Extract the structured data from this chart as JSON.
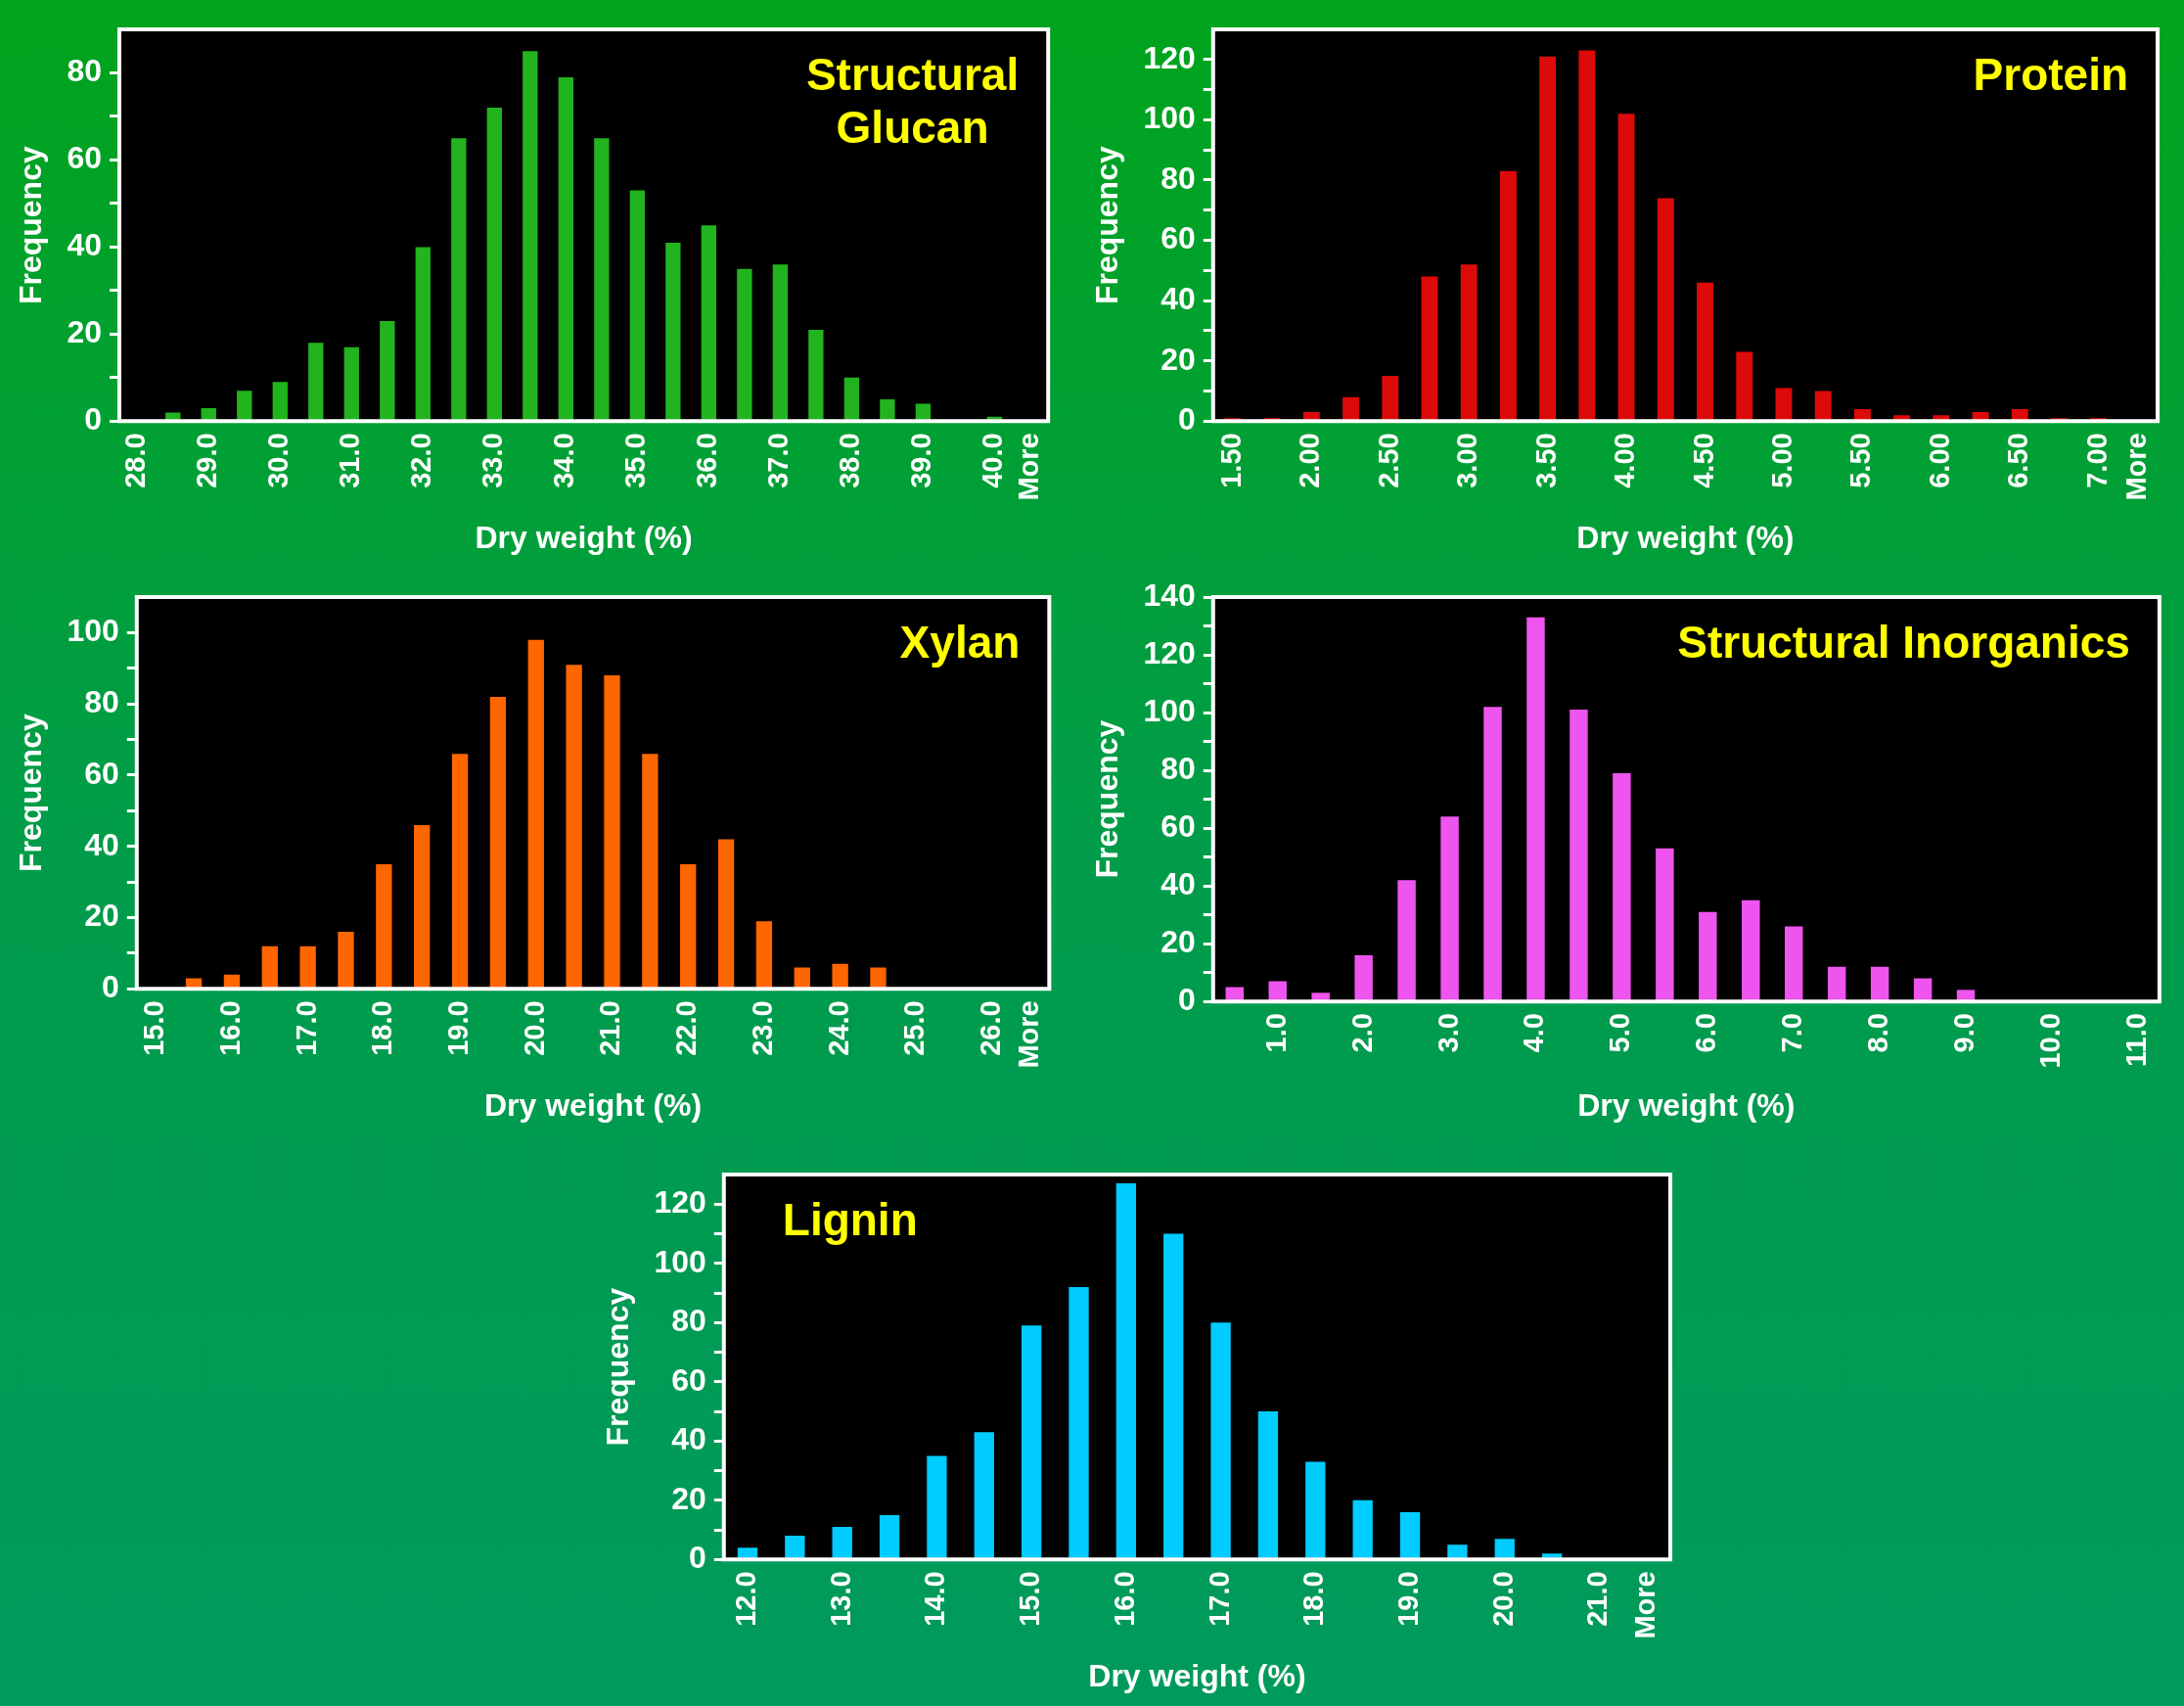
{
  "chart_data": [
    {
      "type": "bar",
      "title": "Structural Glucan",
      "xlabel": "Dry weight (%)",
      "ylabel": "Frequency",
      "color": "#22b41e",
      "categories": [
        "28.0",
        null,
        "29.0",
        null,
        "30.0",
        null,
        "31.0",
        null,
        "32.0",
        null,
        "33.0",
        null,
        "34.0",
        null,
        "35.0",
        null,
        "36.0",
        null,
        "37.0",
        null,
        "38.0",
        null,
        "39.0",
        null,
        "40.0",
        "More"
      ],
      "values": [
        0,
        2,
        3,
        7,
        9,
        18,
        17,
        23,
        40,
        65,
        72,
        85,
        79,
        65,
        53,
        41,
        45,
        35,
        36,
        21,
        10,
        5,
        4,
        0,
        1,
        0
      ],
      "ylim": [
        0,
        90
      ],
      "yticks": [
        0,
        {
          "value": 10,
          "label": null
        },
        20,
        {
          "value": 30,
          "label": null
        },
        40,
        {
          "value": 50,
          "label": null
        },
        60,
        {
          "value": 70,
          "label": null
        },
        80
      ]
    },
    {
      "type": "bar",
      "title": "Protein",
      "xlabel": "Dry weight (%)",
      "ylabel": "Frequency",
      "color": "#dd0a0a",
      "categories": [
        "1.50",
        null,
        "2.00",
        null,
        "2.50",
        null,
        "3.00",
        null,
        "3.50",
        null,
        "4.00",
        null,
        "4.50",
        null,
        "5.00",
        null,
        "5.50",
        null,
        "6.00",
        null,
        "6.50",
        null,
        "7.00",
        "More"
      ],
      "values": [
        1,
        1,
        3,
        8,
        15,
        48,
        52,
        83,
        121,
        123,
        102,
        74,
        46,
        23,
        11,
        10,
        4,
        2,
        2,
        3,
        4,
        1,
        1,
        null
      ],
      "ylim": [
        0,
        130
      ],
      "yticks": [
        0,
        {
          "value": 10,
          "label": null
        },
        20,
        {
          "value": 30,
          "label": null
        },
        40,
        {
          "value": 50,
          "label": null
        },
        60,
        {
          "value": 70,
          "label": null
        },
        80,
        {
          "value": 90,
          "label": null
        },
        100,
        {
          "value": 110,
          "label": null
        },
        120
      ]
    },
    {
      "type": "bar",
      "title": "Xylan",
      "xlabel": "Dry weight (%)",
      "ylabel": "Frequency",
      "color": "#ff6600",
      "categories": [
        "15.0",
        null,
        "16.0",
        null,
        "17.0",
        null,
        "18.0",
        null,
        "19.0",
        null,
        "20.0",
        null,
        "21.0",
        null,
        "22.0",
        null,
        "23.0",
        null,
        "24.0",
        null,
        "25.0",
        null,
        "26.0",
        "More"
      ],
      "values": [
        0,
        3,
        4,
        12,
        12,
        16,
        35,
        46,
        66,
        82,
        98,
        91,
        88,
        66,
        35,
        42,
        19,
        6,
        7,
        6,
        0,
        0,
        0,
        0
      ],
      "ylim": [
        0,
        110
      ],
      "yticks": [
        0,
        {
          "value": 10,
          "label": null
        },
        20,
        {
          "value": 30,
          "label": null
        },
        40,
        {
          "value": 50,
          "label": null
        },
        60,
        {
          "value": 70,
          "label": null
        },
        80,
        {
          "value": 90,
          "label": null
        },
        100
      ]
    },
    {
      "type": "bar",
      "title": "Structural Inorganics",
      "xlabel": "Dry weight (%)",
      "ylabel": "Frequency",
      "color": "#ee55ee",
      "categories": [
        null,
        "1.0",
        null,
        "2.0",
        null,
        "3.0",
        null,
        "4.0",
        null,
        "5.0",
        null,
        "6.0",
        null,
        "7.0",
        null,
        "8.0",
        null,
        "9.0",
        null,
        "10.0",
        null,
        "11.0"
      ],
      "values": [
        5,
        7,
        3,
        16,
        42,
        64,
        102,
        133,
        101,
        79,
        53,
        31,
        35,
        26,
        12,
        12,
        8,
        4,
        0,
        0,
        0,
        0
      ],
      "ylim": [
        0,
        140
      ],
      "yticks": [
        0,
        {
          "value": 10,
          "label": null
        },
        20,
        {
          "value": 30,
          "label": null
        },
        40,
        {
          "value": 50,
          "label": null
        },
        60,
        {
          "value": 70,
          "label": null
        },
        80,
        {
          "value": 90,
          "label": null
        },
        100,
        {
          "value": 110,
          "label": null
        },
        120,
        {
          "value": 130,
          "label": null
        },
        140
      ]
    },
    {
      "type": "bar",
      "title": "Lignin",
      "xlabel": "Dry weight (%)",
      "ylabel": "Frequency",
      "color": "#00ccff",
      "categories": [
        "12.0",
        null,
        "13.0",
        null,
        "14.0",
        null,
        "15.0",
        null,
        "16.0",
        null,
        "17.0",
        null,
        "18.0",
        null,
        "19.0",
        null,
        "20.0",
        null,
        "21.0",
        "More"
      ],
      "values": [
        4,
        8,
        11,
        15,
        35,
        43,
        79,
        92,
        127,
        110,
        80,
        50,
        33,
        20,
        16,
        5,
        7,
        2,
        0,
        0
      ],
      "ylim": [
        0,
        130
      ],
      "yticks": [
        0,
        {
          "value": 10,
          "label": null
        },
        20,
        {
          "value": 30,
          "label": null
        },
        40,
        {
          "value": 50,
          "label": null
        },
        60,
        {
          "value": 70,
          "label": null
        },
        80,
        {
          "value": 90,
          "label": null
        },
        100,
        {
          "value": 110,
          "label": null
        },
        120
      ]
    }
  ]
}
